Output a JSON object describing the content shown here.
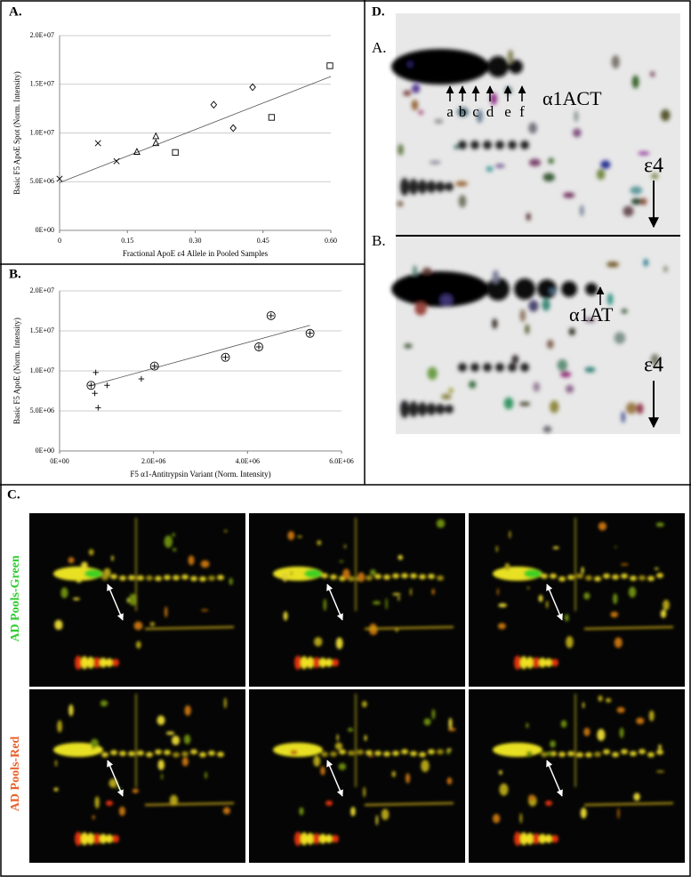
{
  "chart_data": [
    {
      "type": "scatter",
      "x_label": "Fractional ApoE ε4 Allele in Pooled Samples",
      "y_label": "Basic F5 ApoE Spot (Norm. Intensity)",
      "xlim": [
        0,
        0.6
      ],
      "ylim": [
        0,
        20000000
      ],
      "xticks": [
        0,
        0.15,
        {
          "value": 0.3,
          "label": "0.30"
        },
        0.45,
        {
          "value": 0.6,
          "label": "0.60"
        }
      ],
      "yticks": [
        {
          "value": 0,
          "label": "0E+00"
        },
        {
          "value": 5000000,
          "label": "5.0E+06"
        },
        {
          "value": 10000000,
          "label": "1.0E+07"
        },
        {
          "value": 15000000,
          "label": "1.5E+07"
        },
        {
          "value": 20000000,
          "label": "2.0E+07"
        }
      ],
      "grid": true,
      "color": "#000000",
      "series": [
        {
          "marker": "x",
          "x": [
            0,
            0.085,
            0.126
          ],
          "values": [
            5300000,
            8950000,
            7100000
          ]
        },
        {
          "marker": "triangle",
          "x": [
            0.171,
            0.213,
            0.213
          ],
          "values": [
            8100000,
            9700000,
            9000000
          ]
        },
        {
          "marker": "square",
          "x": [
            0.256,
            0.469,
            0.598
          ],
          "values": [
            8000000,
            11600000,
            16900000
          ]
        },
        {
          "marker": "diamond",
          "x": [
            0.341,
            0.384,
            0.427
          ],
          "values": [
            12900000,
            10500000,
            14700000
          ]
        }
      ],
      "trendline": {
        "x": [
          0,
          0.6
        ],
        "values": [
          4900000,
          15800000
        ]
      }
    },
    {
      "type": "scatter",
      "x_label": "F5 α1-Antitrypsin Variant (Norm. Intensity)",
      "y_label": "Basic F5 ApoE (Norm. Intensity)",
      "xlim": [
        0,
        6000000
      ],
      "ylim": [
        0,
        20000000
      ],
      "xticks": [
        {
          "value": 0,
          "label": "0E+00"
        },
        {
          "value": 2000000,
          "label": "2.0E+06"
        },
        {
          "value": 4000000,
          "label": "4.0E+06"
        },
        {
          "value": 6000000,
          "label": "6.0E+06"
        }
      ],
      "yticks": [
        {
          "value": 0,
          "label": "0E+00"
        },
        {
          "value": 5000000,
          "label": "5.0E+06"
        },
        {
          "value": 10000000,
          "label": "1.0E+07"
        },
        {
          "value": 15000000,
          "label": "1.5E+07"
        },
        {
          "value": 20000000,
          "label": "2.0E+07"
        }
      ],
      "grid": true,
      "color": "#000000",
      "series": [
        {
          "marker": "plus",
          "x": [
            770000,
            750000,
            820000,
            1010000,
            1740000
          ],
          "values": [
            9800000,
            7200000,
            5400000,
            8200000,
            9000000
          ]
        },
        {
          "marker": "circled-plus",
          "x": [
            670000,
            2020000,
            3530000,
            4240000,
            4500000,
            5330000
          ],
          "values": [
            8200000,
            10600000,
            11700000,
            13000000,
            16900000,
            14700000
          ]
        }
      ],
      "trendline": {
        "x": [
          620000,
          5330000
        ],
        "values": [
          8100000,
          15700000
        ]
      }
    }
  ],
  "panels": {
    "a": "A.",
    "b": "B.",
    "c": "C.",
    "d": "D."
  },
  "gel_d": {
    "row_labels": [
      "A.",
      "B."
    ],
    "spots": [
      "a",
      "b",
      "c",
      "d",
      "e",
      "f"
    ],
    "act": "α1ACT",
    "at": "α1AT",
    "e4": [
      "ε4",
      "ε4"
    ]
  },
  "panel_c": {
    "rows": [
      "AD Pools-Green",
      "AD Pools-Red"
    ]
  }
}
